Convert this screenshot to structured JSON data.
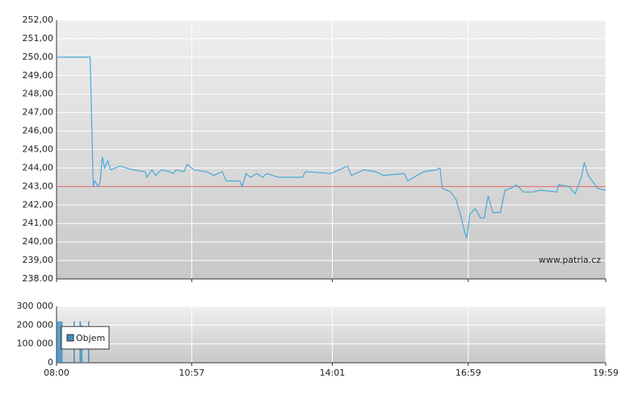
{
  "chart_data": [
    {
      "type": "line",
      "watermark": "www.patria.cz",
      "x": [
        480,
        524,
        528,
        530,
        534,
        537,
        540,
        543,
        547,
        551,
        563,
        580,
        596,
        598,
        605,
        610,
        617,
        628,
        633,
        636,
        647,
        651,
        660,
        676,
        686,
        697,
        702,
        720,
        723,
        728,
        734,
        742,
        750,
        755,
        771,
        802,
        806,
        839,
        855,
        861,
        866,
        882,
        898,
        908,
        935,
        940,
        956,
        961,
        977,
        982,
        985,
        996,
        1003,
        1008,
        1014,
        1017,
        1021,
        1028,
        1035,
        1040,
        1045,
        1051,
        1061,
        1067,
        1075,
        1082,
        1091,
        1104,
        1114,
        1135,
        1137,
        1151,
        1159,
        1167,
        1171,
        1176,
        1183,
        1188,
        1199
      ],
      "series": [
        {
          "color": "#4aa8d8",
          "values": [
            250,
            250,
            243.0,
            243.3,
            243.0,
            243.2,
            244.6,
            244.0,
            244.4,
            243.9,
            244.1,
            243.9,
            243.8,
            243.5,
            243.9,
            243.6,
            243.9,
            243.8,
            243.7,
            243.9,
            243.8,
            244.2,
            243.9,
            243.8,
            243.6,
            243.8,
            243.3,
            243.3,
            243.0,
            243.7,
            243.5,
            243.7,
            243.5,
            243.7,
            243.5,
            243.5,
            243.8,
            243.7,
            244.0,
            244.1,
            243.6,
            243.9,
            243.8,
            243.6,
            243.7,
            243.3,
            243.7,
            243.8,
            243.9,
            244.0,
            242.9,
            242.7,
            242.3,
            241.6,
            240.6,
            240.2,
            241.5,
            241.8,
            241.3,
            241.3,
            242.5,
            241.6,
            241.6,
            242.8,
            242.9,
            243.1,
            242.7,
            242.7,
            242.8,
            242.7,
            243.1,
            243.0,
            242.6,
            243.5,
            244.3,
            243.6,
            243.2,
            242.9,
            242.8
          ]
        }
      ],
      "reference_line": 243,
      "reference_color": "#e06060",
      "xlim": [
        480,
        1199
      ],
      "ylim": [
        238,
        252
      ],
      "yticks": [
        {
          "value": 238,
          "label": "238.00"
        },
        {
          "value": 239,
          "label": "239,00"
        },
        {
          "value": 240,
          "label": "240,00"
        },
        {
          "value": 241,
          "label": "241,00"
        },
        {
          "value": 242,
          "label": "242,00"
        },
        {
          "value": 243,
          "label": "243,00"
        },
        {
          "value": 244,
          "label": "244,00"
        },
        {
          "value": 245,
          "label": "245,00"
        },
        {
          "value": 246,
          "label": "246,00"
        },
        {
          "value": 247,
          "label": "247,00"
        },
        {
          "value": 248,
          "label": "248,00"
        },
        {
          "value": 249,
          "label": "249,00"
        },
        {
          "value": 250,
          "label": "250,00"
        },
        {
          "value": 251,
          "label": "251,00"
        },
        {
          "value": 252,
          "label": "252,00"
        }
      ],
      "grid": true
    },
    {
      "type": "bar",
      "x": [
        481,
        483,
        485,
        487,
        503,
        511,
        513,
        522
      ],
      "series": [
        {
          "name": "Objem",
          "color": "#3d8fc2",
          "values": [
            220000,
            220000,
            220000,
            220000,
            220000,
            220000,
            200000,
            220000
          ]
        }
      ],
      "xlim": [
        480,
        1199
      ],
      "xticks": [
        {
          "value": 480,
          "label": "08:00"
        },
        {
          "value": 657,
          "label": "10:57"
        },
        {
          "value": 841,
          "label": "14:01"
        },
        {
          "value": 1019,
          "label": "16:59"
        },
        {
          "value": 1199,
          "label": "19:59"
        }
      ],
      "ylim": [
        0,
        300000
      ],
      "yticks": [
        0,
        {
          "value": 100000,
          "label": "100 000"
        },
        {
          "value": 200000,
          "label": "200 000"
        },
        {
          "value": 300000,
          "label": "300 000"
        }
      ],
      "grid": true
    }
  ]
}
